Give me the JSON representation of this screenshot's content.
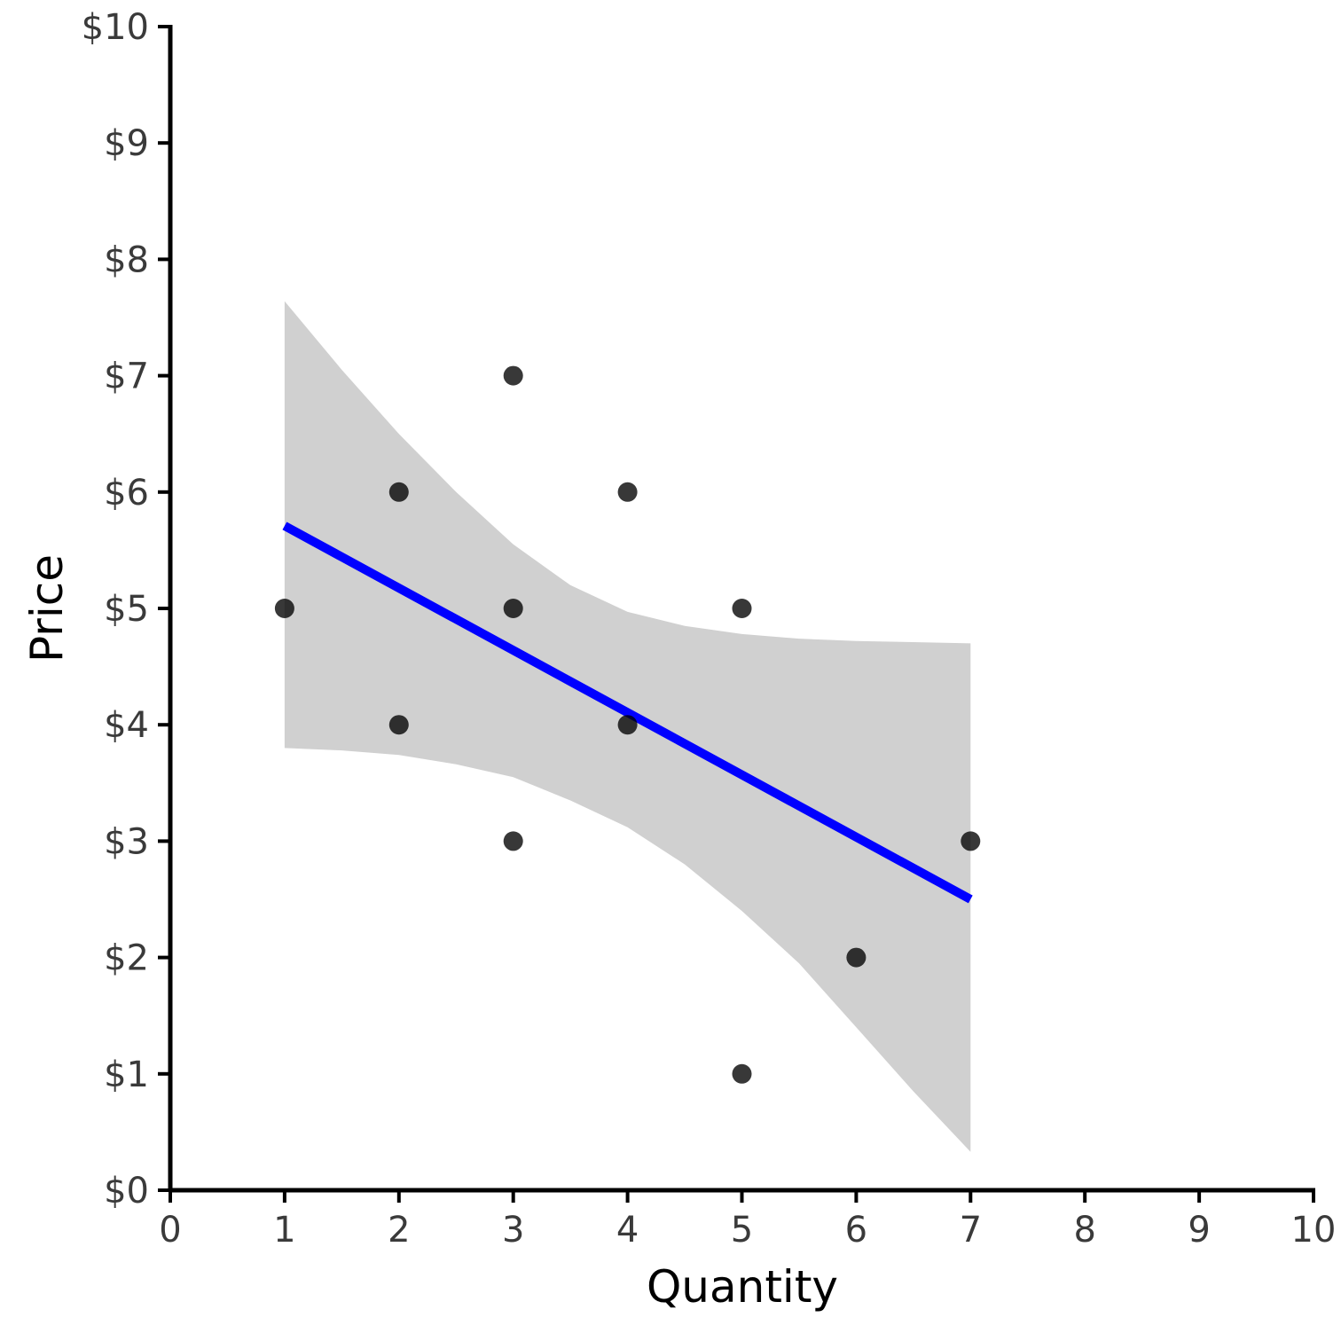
{
  "chart_data": {
    "type": "scatter",
    "title": "",
    "xlabel": "Quantity",
    "ylabel": "Price",
    "xlim": [
      0,
      10
    ],
    "ylim": [
      0,
      10
    ],
    "x_ticks": [
      "0",
      "1",
      "2",
      "3",
      "4",
      "5",
      "6",
      "7",
      "8",
      "9",
      "10"
    ],
    "y_ticks": [
      "$0",
      "$1",
      "$2",
      "$3",
      "$4",
      "$5",
      "$6",
      "$7",
      "$8",
      "$9",
      "$10"
    ],
    "grid": false,
    "legend": "none",
    "series": [
      {
        "type": "scatter",
        "color": "#000000",
        "points": [
          {
            "x": 1,
            "y": 5
          },
          {
            "x": 2,
            "y": 6
          },
          {
            "x": 2,
            "y": 4
          },
          {
            "x": 3,
            "y": 7
          },
          {
            "x": 3,
            "y": 5
          },
          {
            "x": 3,
            "y": 3
          },
          {
            "x": 4,
            "y": 6
          },
          {
            "x": 4,
            "y": 4
          },
          {
            "x": 5,
            "y": 5
          },
          {
            "x": 5,
            "y": 1
          },
          {
            "x": 6,
            "y": 2
          },
          {
            "x": 7,
            "y": 3
          }
        ]
      }
    ],
    "trend_line": {
      "type": "linear",
      "color": "#0000ff",
      "from": {
        "x": 1,
        "y": 5.71
      },
      "to": {
        "x": 7,
        "y": 2.5
      }
    },
    "confidence_band": {
      "color": "#d0d0d0",
      "upper": [
        {
          "x": 1,
          "y": 7.64
        },
        {
          "x": 1.5,
          "y": 7.05
        },
        {
          "x": 2,
          "y": 6.5
        },
        {
          "x": 2.5,
          "y": 6.0
        },
        {
          "x": 3,
          "y": 5.55
        },
        {
          "x": 3.5,
          "y": 5.2
        },
        {
          "x": 4,
          "y": 4.97
        },
        {
          "x": 4.5,
          "y": 4.85
        },
        {
          "x": 5,
          "y": 4.78
        },
        {
          "x": 5.5,
          "y": 4.74
        },
        {
          "x": 6,
          "y": 4.72
        },
        {
          "x": 6.5,
          "y": 4.71
        },
        {
          "x": 7,
          "y": 4.7
        }
      ],
      "lower": [
        {
          "x": 1,
          "y": 3.8
        },
        {
          "x": 1.5,
          "y": 3.78
        },
        {
          "x": 2,
          "y": 3.74
        },
        {
          "x": 2.5,
          "y": 3.66
        },
        {
          "x": 3,
          "y": 3.55
        },
        {
          "x": 3.5,
          "y": 3.35
        },
        {
          "x": 4,
          "y": 3.12
        },
        {
          "x": 4.5,
          "y": 2.8
        },
        {
          "x": 5,
          "y": 2.4
        },
        {
          "x": 5.5,
          "y": 1.95
        },
        {
          "x": 6,
          "y": 1.4
        },
        {
          "x": 6.5,
          "y": 0.85
        },
        {
          "x": 7,
          "y": 0.33
        }
      ]
    }
  }
}
